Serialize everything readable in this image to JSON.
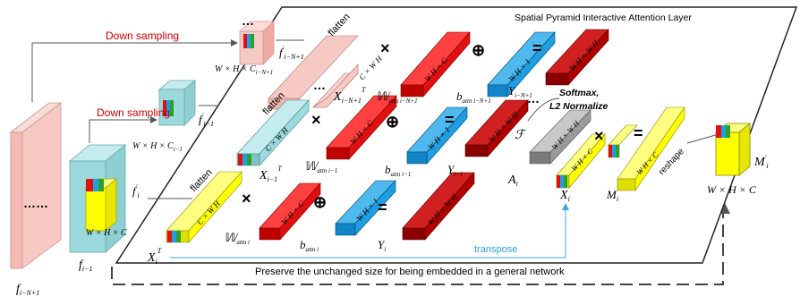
{
  "title": "Spatial Pyramid Interactive Attention Layer",
  "down_sampling_top": "Down sampling",
  "down_sampling_mid": "Down sampling",
  "flatten_top": "flatten",
  "flatten_mid": "flatten",
  "flatten_bot": "flatten",
  "softmax": "Softmax,",
  "l2": "L2 Normalize",
  "transpose": "transpose",
  "reshape": "reshape",
  "preserve": "Preserve the unchanged size for being embedded in a general network",
  "ellipsis_big": "……",
  "ellipsis_small": "…",
  "ops": {
    "times": "×",
    "plus": "⊕",
    "equals": "="
  },
  "math": {
    "f_i_N1": "f",
    "f_i_N1_sub": "i−N+1",
    "f_i_1": "f",
    "f_i_1_sub": "i−1",
    "f_i_prime_top": "f",
    "f_i_prime_top_sub": "i−N+1",
    "f_i_prime_mid": "f",
    "f_i_prime_mid_sub": "i−1",
    "f_i_prime_bot": "f",
    "f_i_prime_bot_sub": "i",
    "dim_top": "W × H × C",
    "dim_top_sub": "i−N+1",
    "dim_mid": "W × H × C",
    "dim_mid_sub": "i−1",
    "dim_f": "W × H × C",
    "dim_out": "W × H × C",
    "X_top": "X",
    "X_top_sub": "i−N+1",
    "X_mid": "X",
    "X_mid_sub": "i−1",
    "X_bot": "X",
    "X_bot_sub": "i",
    "T": "T",
    "W_top": "𝕎",
    "W_top_sub": "attn i−N+1",
    "W_mid": "𝕎",
    "W_mid_sub": "attn i−1",
    "W_bot": "𝕎",
    "W_bot_sub": "attn i",
    "b_top": "b",
    "b_top_sub": "attn i−N+1",
    "b_mid": "b",
    "b_mid_sub": "attn i−1",
    "b_bot": "b",
    "b_bot_sub": "attn i",
    "Y_top": "Y",
    "Y_top_sub": "i−N+1",
    "Y_mid": "Y",
    "Y_mid_sub": "i−1",
    "Y_bot": "Y",
    "Y_bot_sub": "i",
    "A_i": "A",
    "A_i_sub": "i",
    "X_i_right": "X",
    "X_i_right_sub": "i",
    "M_i": "M",
    "M_i_sub": "i",
    "M_i_prime": "M",
    "M_i_prime_sub": "i",
    "script_F": "ℱ"
  },
  "bar_labels": {
    "x_top": "C × W H",
    "w_top": "W H × C",
    "b_top": "W H × 1",
    "y_top": "W H × W H",
    "x_mid": "C × W H",
    "w_mid": "W H × C",
    "b_mid": "W H × 1",
    "y_mid": "W H × W H",
    "x_bot": "C × W H",
    "w_bot": "W H × C",
    "b_bot": "W H × 1",
    "y_bot": "W H × W H",
    "a_i": "W H × W H",
    "x_i_r": "W H × C",
    "m_i": "W H × C"
  },
  "colors": {
    "pink": "#f7c9c3",
    "cyan": "#9bd9dc",
    "yellow": "#ffff00",
    "red": "#e01010",
    "blue": "#1e9fe3",
    "darkred": "#b00000",
    "gray": "#9a9a9a",
    "transpose_line": "#3aa8df",
    "downsample_text": "#c00000"
  }
}
